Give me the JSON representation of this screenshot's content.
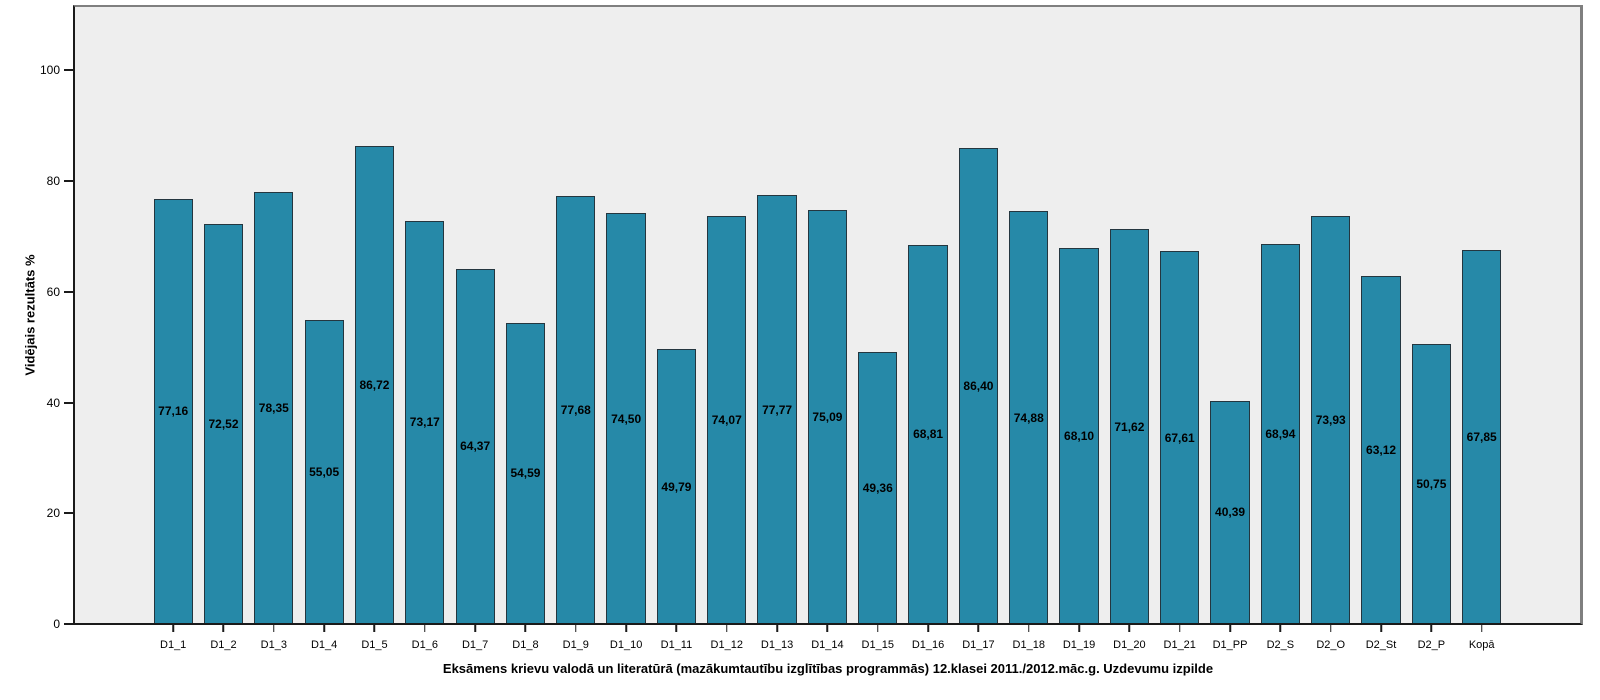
{
  "figure": {
    "background": "#FFFFFF",
    "plot_background": "#EEEEEE",
    "frame_color": "#7F7F7F",
    "axis_color": "#1A1A1A"
  },
  "chart_data": {
    "type": "bar",
    "title": "",
    "xlabel": "Eksāmens krievu valodā un literatūrā (mazākumtautību izglītības programmās) 12.klasei 2011./2012.māc.g. Uzdevumu izpilde",
    "ylabel": "Vidējais rezultāts %",
    "categories": [
      "D1_1",
      "D1_2",
      "D1_3",
      "D1_4",
      "D1_5",
      "D1_6",
      "D1_7",
      "D1_8",
      "D1_9",
      "D1_10",
      "D1_11",
      "D1_12",
      "D1_13",
      "D1_14",
      "D1_15",
      "D1_16",
      "D1_17",
      "D1_18",
      "D1_19",
      "D1_20",
      "D1_21",
      "D1_PP",
      "D2_S",
      "D2_O",
      "D2_St",
      "D2_P",
      "Kopā"
    ],
    "values": [
      77.16,
      72.52,
      78.35,
      55.05,
      86.72,
      73.17,
      64.37,
      54.59,
      77.68,
      74.5,
      49.79,
      74.07,
      77.77,
      75.09,
      49.36,
      68.81,
      86.4,
      74.88,
      68.1,
      71.62,
      67.61,
      40.39,
      68.94,
      73.93,
      63.12,
      50.75,
      67.85
    ],
    "value_labels": [
      "77,16",
      "72,52",
      "78,35",
      "55,05",
      "86,72",
      "73,17",
      "64,37",
      "54,59",
      "77,68",
      "74,50",
      "49,79",
      "74,07",
      "77,77",
      "75,09",
      "49,36",
      "68,81",
      "86,40",
      "74,88",
      "68,10",
      "71,62",
      "67,61",
      "40,39",
      "68,94",
      "73,93",
      "63,12",
      "50,75",
      "67,85"
    ],
    "y_ticks": [
      0,
      20,
      40,
      60,
      80,
      100
    ],
    "ylim": [
      0,
      112
    ],
    "grid": false,
    "legend_position": "none",
    "bar_color": "#2689A8",
    "bar_border_color": "#24363F",
    "value_label_position": "middle-of-bar"
  }
}
